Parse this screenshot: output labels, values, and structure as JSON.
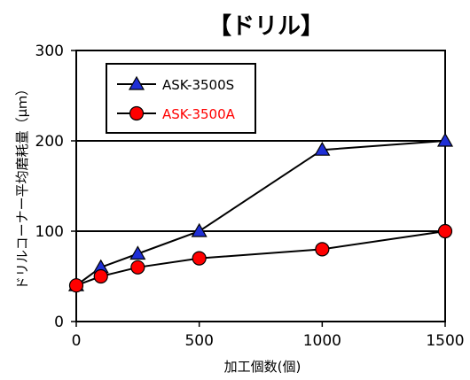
{
  "chart_data": {
    "type": "line",
    "title": "【ドリル】",
    "xlabel": "加工個数(個)",
    "ylabel": "ドリルコーナー平均磨耗量（μｍ）",
    "xlim": [
      0,
      1500
    ],
    "ylim": [
      0,
      300
    ],
    "xticks": [
      0,
      500,
      1000,
      1500
    ],
    "yticks": [
      0,
      100,
      200,
      300
    ],
    "xtick_labels": [
      "0",
      "500",
      "1000",
      "1500"
    ],
    "ytick_labels": [
      "0",
      "100",
      "200",
      "300"
    ],
    "grid": "horizontal",
    "legend_position": "top-left",
    "series": [
      {
        "name": "ASK-3500S",
        "marker": "triangle",
        "marker_color": "#1f2fd6",
        "label_color": "#000000",
        "x": [
          0,
          100,
          250,
          500,
          1000,
          1500
        ],
        "y": [
          40,
          60,
          75,
          100,
          190,
          200
        ]
      },
      {
        "name": "ASK-3500A",
        "marker": "circle",
        "marker_color": "#ff0000",
        "label_color": "#ff0000",
        "x": [
          0,
          100,
          250,
          500,
          1000,
          1500
        ],
        "y": [
          40,
          50,
          60,
          70,
          80,
          100
        ]
      }
    ]
  }
}
